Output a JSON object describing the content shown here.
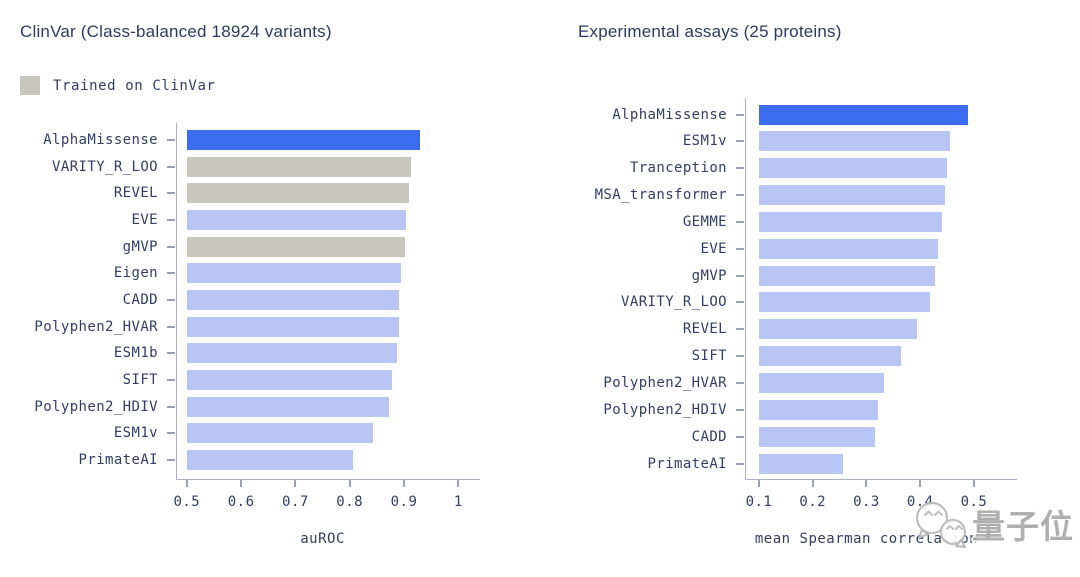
{
  "colors": {
    "background": "#ffffff",
    "title_text": "#2d3a5e",
    "label_text": "#333d63",
    "axis_line": "#aab0c2"
  },
  "palette": {
    "highlight": "#3b6cf0",
    "normal": "#b8c5f5",
    "trained": "#c9c6c0"
  },
  "legend": {
    "label": "Trained on ClinVar",
    "swatch_color": "#c9c6c0"
  },
  "watermark": {
    "icon": "wechat-chat-bubbles-icon",
    "text": "量子位"
  },
  "chart_data": [
    {
      "type": "bar",
      "orientation": "horizontal",
      "title": "ClinVar (Class-balanced 18924 variants)",
      "xlabel": "auROC",
      "xlim": [
        0.48,
        1.04
      ],
      "bar_start": 0.5,
      "xticks": [
        0.5,
        0.6,
        0.7,
        0.8,
        0.9,
        1
      ],
      "xtick_labels": [
        "0.5",
        "0.6",
        "0.7",
        "0.8",
        "0.9",
        "1"
      ],
      "grid": false,
      "legend_entries": [
        "Trained on ClinVar"
      ],
      "categories": [
        "AlphaMissense",
        "VARITY_R_LOO",
        "REVEL",
        "EVE",
        "gMVP",
        "Eigen",
        "CADD",
        "Polyphen2_HVAR",
        "ESM1b",
        "SIFT",
        "Polyphen2_HDIV",
        "ESM1v",
        "PrimateAI"
      ],
      "values": [
        0.93,
        0.912,
        0.909,
        0.903,
        0.902,
        0.894,
        0.891,
        0.891,
        0.888,
        0.877,
        0.872,
        0.842,
        0.806
      ],
      "styles": [
        "highlight",
        "trained",
        "trained",
        "normal",
        "trained",
        "normal",
        "normal",
        "normal",
        "normal",
        "normal",
        "normal",
        "normal",
        "normal"
      ]
    },
    {
      "type": "bar",
      "orientation": "horizontal",
      "title": "Experimental assays (25 proteins)",
      "xlabel": "mean Spearman correlation",
      "xlim": [
        0.074,
        0.58
      ],
      "bar_start": 0.1,
      "xticks": [
        0.1,
        0.2,
        0.3,
        0.4,
        0.5
      ],
      "xtick_labels": [
        "0.1",
        "0.2",
        "0.3",
        "0.4",
        "0.5"
      ],
      "grid": false,
      "legend_entries": [],
      "categories": [
        "AlphaMissense",
        "ESM1v",
        "Tranception",
        "MSA_transformer",
        "GEMME",
        "EVE",
        "gMVP",
        "VARITY_R_LOO",
        "REVEL",
        "SIFT",
        "Polyphen2_HVAR",
        "Polyphen2_HDIV",
        "CADD",
        "PrimateAI"
      ],
      "values": [
        0.489,
        0.456,
        0.45,
        0.446,
        0.441,
        0.433,
        0.428,
        0.418,
        0.394,
        0.364,
        0.333,
        0.322,
        0.316,
        0.257
      ],
      "styles": [
        "highlight",
        "normal",
        "normal",
        "normal",
        "normal",
        "normal",
        "normal",
        "normal",
        "normal",
        "normal",
        "normal",
        "normal",
        "normal",
        "normal"
      ]
    }
  ]
}
